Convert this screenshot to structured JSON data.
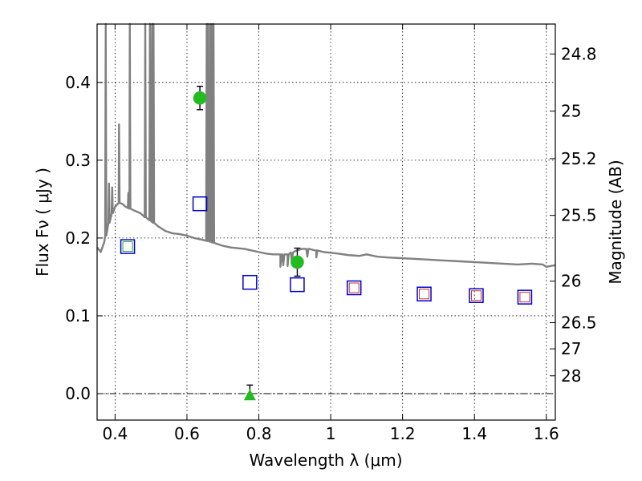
{
  "chart_data": {
    "type": "scatter",
    "xlabel": "Wavelength  λ (μm)",
    "ylabel": "Flux  Fν  ( μJy )",
    "ylabel_right": "Magnitude (AB)",
    "xlim": [
      0.35,
      1.625
    ],
    "ylim": [
      -0.034,
      0.475
    ],
    "grid": true,
    "x_ticks": [
      0.4,
      0.6,
      0.8,
      1.0,
      1.2,
      1.4,
      1.6
    ],
    "x_tick_labels": [
      "0.4",
      "0.6",
      "0.8",
      "1",
      "1.2",
      "1.4",
      "1.6"
    ],
    "y_ticks": [
      0.0,
      0.1,
      0.2,
      0.3,
      0.4
    ],
    "y_tick_labels": [
      "0.0",
      "0.1",
      "0.2",
      "0.3",
      "0.4"
    ],
    "right_ticks": [
      24.8,
      25,
      25.2,
      25.5,
      26,
      26.5,
      27,
      28
    ],
    "right_tick_labels": [
      "24.8",
      "25",
      "25.2",
      "25.5",
      "26",
      "26.5",
      "27",
      "28"
    ],
    "reference_line_y": 0,
    "colors": {
      "template": "#808080",
      "detection": "#22bb22",
      "model_outer": "#0000cc",
      "model_inner_red": "#cc3333",
      "model_inner_green": "#22aa22",
      "errorbar": "#000000",
      "grid": "#000000"
    },
    "series": [
      {
        "marker": "circle",
        "color": "#22bb22",
        "points": [
          {
            "x": 0.636,
            "y": 0.38,
            "yerr": 0.015
          },
          {
            "x": 0.907,
            "y": 0.169,
            "yerr": 0.018
          }
        ]
      },
      {
        "marker": "triangle",
        "color": "#22bb22",
        "points": [
          {
            "x": 0.775,
            "y": -0.002,
            "yerr": 0.013
          }
        ]
      },
      {
        "marker": "square-open",
        "color": "#0000cc",
        "points": [
          {
            "x": 0.435,
            "y": 0.189,
            "inner": "green"
          },
          {
            "x": 0.636,
            "y": 0.244,
            "inner": "none"
          },
          {
            "x": 0.775,
            "y": 0.143,
            "inner": "none"
          },
          {
            "x": 0.907,
            "y": 0.14,
            "inner": "none"
          },
          {
            "x": 1.065,
            "y": 0.136,
            "inner": "red"
          },
          {
            "x": 1.26,
            "y": 0.128,
            "inner": "red"
          },
          {
            "x": 1.405,
            "y": 0.126,
            "inner": "red"
          },
          {
            "x": 1.54,
            "y": 0.124,
            "inner": "red"
          }
        ]
      }
    ],
    "template_spectrum": {
      "continuum": [
        [
          0.35,
          0.188
        ],
        [
          0.36,
          0.182
        ],
        [
          0.37,
          0.195
        ],
        [
          0.38,
          0.215
        ],
        [
          0.39,
          0.23
        ],
        [
          0.4,
          0.24
        ],
        [
          0.41,
          0.245
        ],
        [
          0.42,
          0.244
        ],
        [
          0.43,
          0.24
        ],
        [
          0.44,
          0.238
        ],
        [
          0.45,
          0.236
        ],
        [
          0.46,
          0.234
        ],
        [
          0.47,
          0.232
        ],
        [
          0.48,
          0.228
        ],
        [
          0.5,
          0.222
        ],
        [
          0.52,
          0.215
        ],
        [
          0.54,
          0.209
        ],
        [
          0.56,
          0.206
        ],
        [
          0.58,
          0.205
        ],
        [
          0.6,
          0.203
        ],
        [
          0.62,
          0.2
        ],
        [
          0.64,
          0.198
        ],
        [
          0.66,
          0.196
        ],
        [
          0.68,
          0.193
        ],
        [
          0.7,
          0.19
        ],
        [
          0.72,
          0.188
        ],
        [
          0.74,
          0.187
        ],
        [
          0.76,
          0.186
        ],
        [
          0.78,
          0.184
        ],
        [
          0.8,
          0.182
        ],
        [
          0.82,
          0.18
        ],
        [
          0.84,
          0.179
        ],
        [
          0.86,
          0.179
        ],
        [
          0.88,
          0.179
        ],
        [
          0.9,
          0.183
        ],
        [
          0.92,
          0.186
        ],
        [
          0.94,
          0.186
        ],
        [
          0.96,
          0.184
        ],
        [
          0.98,
          0.182
        ],
        [
          1.0,
          0.181
        ],
        [
          1.02,
          0.18
        ],
        [
          1.05,
          0.178
        ],
        [
          1.08,
          0.177
        ],
        [
          1.1,
          0.179
        ],
        [
          1.13,
          0.176
        ],
        [
          1.16,
          0.175
        ],
        [
          1.2,
          0.174
        ],
        [
          1.24,
          0.173
        ],
        [
          1.28,
          0.172
        ],
        [
          1.32,
          0.171
        ],
        [
          1.36,
          0.17
        ],
        [
          1.4,
          0.169
        ],
        [
          1.44,
          0.168
        ],
        [
          1.48,
          0.167
        ],
        [
          1.52,
          0.166
        ],
        [
          1.56,
          0.167
        ],
        [
          1.59,
          0.166
        ],
        [
          1.6,
          0.163
        ],
        [
          1.625,
          0.165
        ]
      ],
      "emission_lines": [
        {
          "x": 0.374,
          "peak": 0.475
        },
        {
          "x": 0.383,
          "peak": 0.27
        },
        {
          "x": 0.392,
          "peak": 0.265
        },
        {
          "x": 0.411,
          "peak": 0.346
        },
        {
          "x": 0.437,
          "peak": 0.258
        },
        {
          "x": 0.441,
          "peak": 0.475
        },
        {
          "x": 0.484,
          "peak": 0.475
        },
        {
          "x": 0.497,
          "peak": 0.475
        },
        {
          "x": 0.503,
          "peak": 0.475
        },
        {
          "x": 0.507,
          "peak": 0.475
        },
        {
          "x": 0.655,
          "peak": 0.475
        },
        {
          "x": 0.659,
          "peak": 0.475
        },
        {
          "x": 0.665,
          "peak": 0.475
        },
        {
          "x": 0.67,
          "peak": 0.475
        },
        {
          "x": 0.674,
          "peak": 0.475
        }
      ],
      "absorption_lines": [
        {
          "x": 0.86,
          "depth": 0.016
        },
        {
          "x": 0.868,
          "depth": 0.014
        },
        {
          "x": 0.88,
          "depth": 0.015
        },
        {
          "x": 0.892,
          "depth": 0.012
        },
        {
          "x": 0.935,
          "depth": 0.01
        },
        {
          "x": 0.96,
          "depth": 0.009
        }
      ]
    }
  }
}
